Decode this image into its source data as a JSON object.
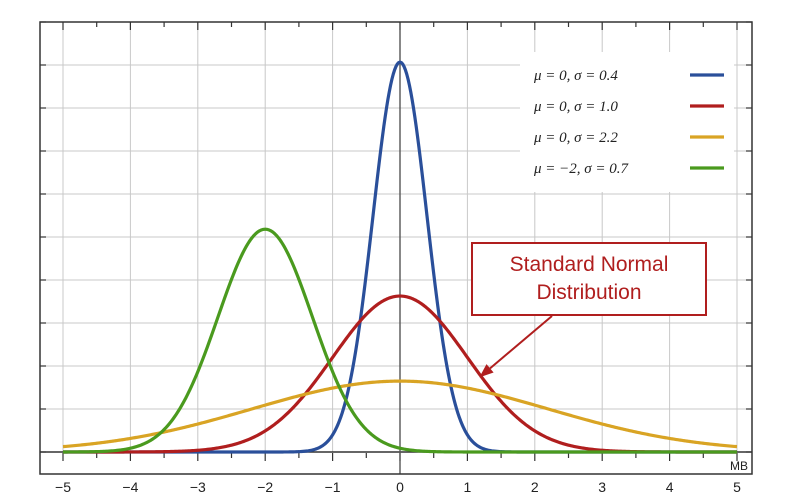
{
  "chart_data": {
    "type": "line",
    "title": "",
    "xlabel": "",
    "ylabel": "",
    "x_unit": "MB",
    "xlim": [
      -5,
      5
    ],
    "ylim": [
      0,
      1.1
    ],
    "x_ticks": [
      -5,
      -4,
      -3,
      -2,
      -1,
      0,
      1,
      2,
      3,
      4,
      5
    ],
    "x_tick_labels": [
      "−5",
      "−4",
      "−3",
      "−2",
      "−1",
      "0",
      "1",
      "2",
      "3",
      "4",
      "5"
    ],
    "y_tick_count": 11,
    "grid": true,
    "legend_position": "top-right",
    "series": [
      {
        "name": "μ = 0,  σ = 0.4",
        "mu": 0,
        "sigma": 0.4,
        "color": "#2a4f9a"
      },
      {
        "name": "μ = 0,  σ = 1.0",
        "mu": 0,
        "sigma": 1.0,
        "color": "#b01e1e"
      },
      {
        "name": "μ = 0,  σ = 2.2",
        "mu": 0,
        "sigma": 2.2,
        "color": "#d9a424"
      },
      {
        "name": "μ = −2,  σ = 0.7",
        "mu": -2,
        "sigma": 0.7,
        "color": "#4a9a1e"
      }
    ],
    "annotation": {
      "line1": "Standard Normal",
      "line2": "Distribution",
      "target_series": 1,
      "target_x": 1.2,
      "color": "#b01e1e"
    }
  }
}
